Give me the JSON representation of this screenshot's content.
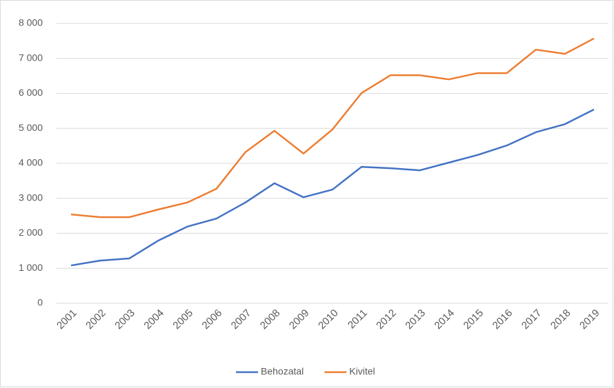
{
  "chart_data": {
    "type": "line",
    "categories": [
      "2001",
      "2002",
      "2003",
      "2004",
      "2005",
      "2006",
      "2007",
      "2008",
      "2009",
      "2010",
      "2011",
      "2012",
      "2013",
      "2014",
      "2015",
      "2016",
      "2017",
      "2018",
      "2019"
    ],
    "series": [
      {
        "name": "Behozatal",
        "color": "#4472c4",
        "values": [
          1080,
          1220,
          1280,
          1790,
          2190,
          2420,
          2880,
          3430,
          3030,
          3250,
          3900,
          3860,
          3800,
          4020,
          4240,
          4510,
          4890,
          5120,
          5540
        ]
      },
      {
        "name": "Kivitel",
        "color": "#ed7d31",
        "values": [
          2540,
          2460,
          2460,
          2680,
          2880,
          3270,
          4320,
          4930,
          4280,
          4970,
          6010,
          6520,
          6520,
          6400,
          6580,
          6580,
          7250,
          7130,
          7570
        ]
      }
    ],
    "ylim": [
      0,
      8000
    ],
    "yticks": [
      0,
      {
        "value": 1000,
        "label": "1 000"
      },
      {
        "value": 2000,
        "label": "2 000"
      },
      {
        "value": 3000,
        "label": "3 000"
      },
      {
        "value": 4000,
        "label": "4 000"
      },
      {
        "value": 5000,
        "label": "5 000"
      },
      {
        "value": 6000,
        "label": "6 000"
      },
      {
        "value": 7000,
        "label": "7 000"
      },
      {
        "value": 8000,
        "label": "8 000"
      }
    ],
    "grid": true,
    "legend": "bottom"
  }
}
